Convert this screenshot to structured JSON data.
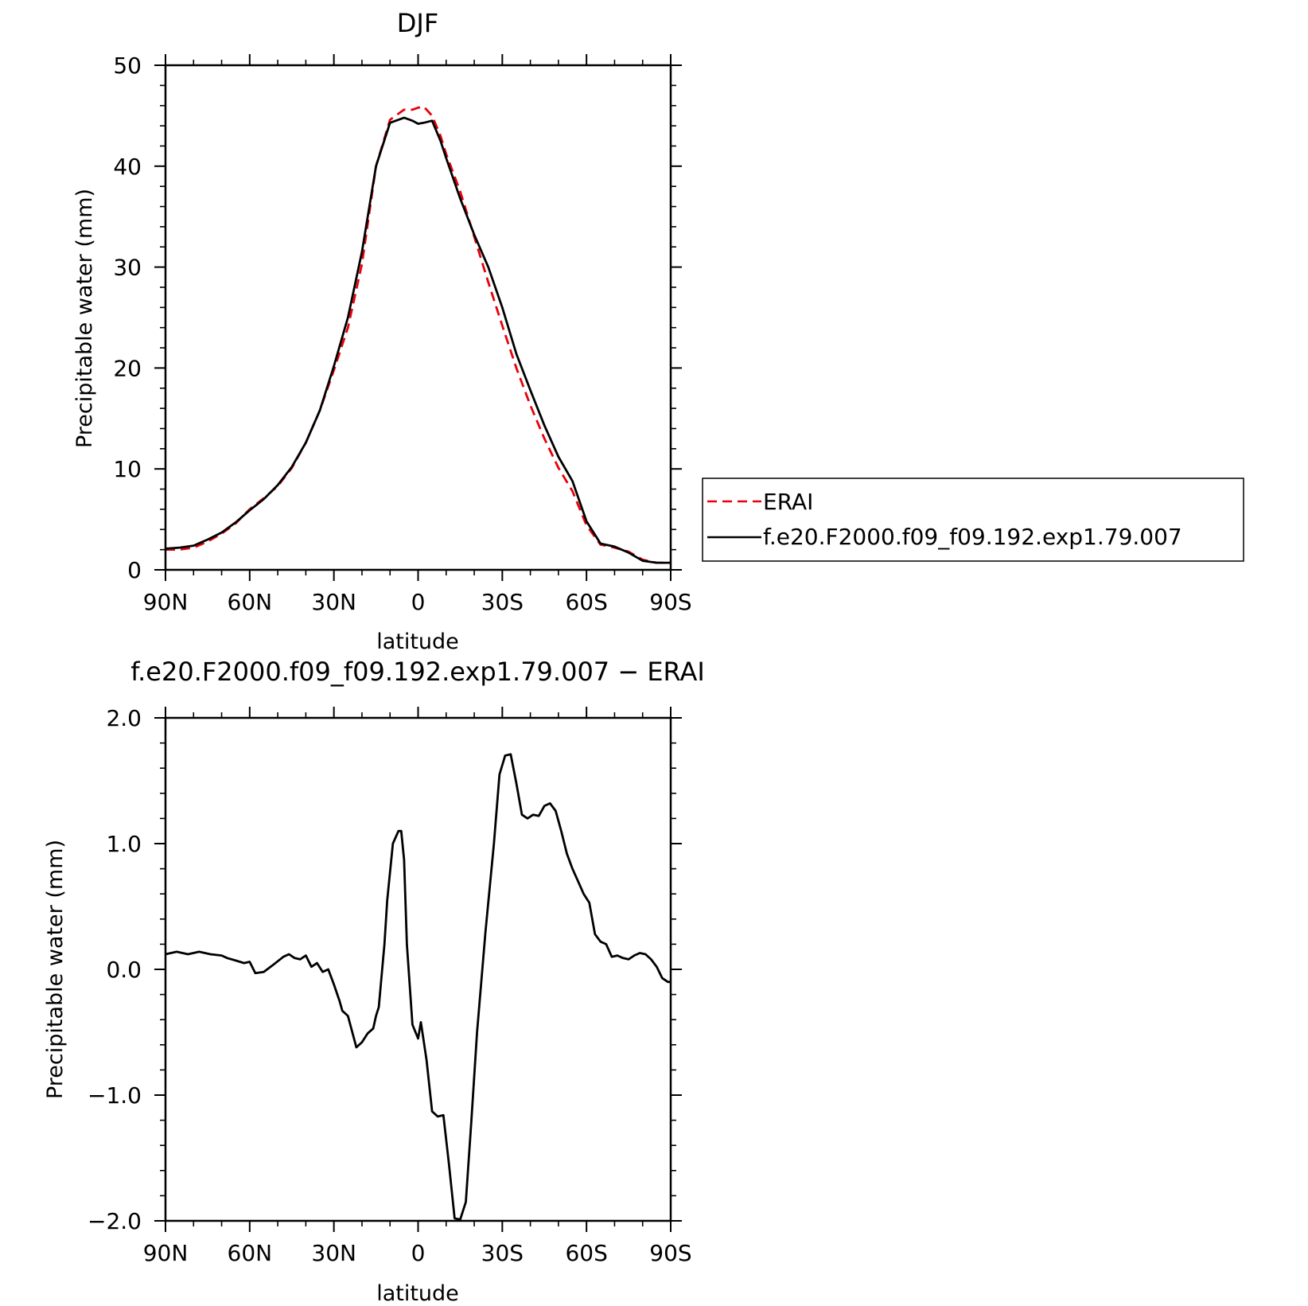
{
  "chart_data": [
    {
      "type": "line",
      "title": "DJF",
      "xlabel": "latitude",
      "ylabel": "Precipitable water (mm)",
      "xlim": [
        90,
        -90
      ],
      "ylim": [
        0,
        50
      ],
      "xtick_values": [
        90,
        60,
        30,
        0,
        -30,
        -60,
        -90
      ],
      "xtick_labels": [
        "90N",
        "60N",
        "30N",
        "0",
        "30S",
        "60S",
        "90S"
      ],
      "ytick_values": [
        0,
        10,
        20,
        30,
        40,
        50
      ],
      "ytick_labels": [
        "0",
        "10",
        "20",
        "30",
        "40",
        "50"
      ],
      "legend_position": "right",
      "series": [
        {
          "name": "ERAI",
          "color": "#e8000b",
          "dash": "dashed",
          "x": [
            90,
            85,
            80,
            75,
            70,
            65,
            60,
            55,
            50,
            45,
            40,
            35,
            30,
            25,
            20,
            15,
            10,
            5,
            2,
            0,
            -2,
            -5,
            -8,
            -10,
            -15,
            -20,
            -25,
            -30,
            -35,
            -40,
            -45,
            -50,
            -55,
            -60,
            -65,
            -70,
            -75,
            -80,
            -85,
            -88,
            -90
          ],
          "y": [
            2.0,
            2.0,
            2.2,
            2.8,
            3.6,
            4.6,
            6.0,
            7.1,
            8.3,
            10.1,
            12.6,
            15.8,
            19.8,
            24.0,
            30.3,
            40.0,
            44.6,
            45.6,
            45.6,
            45.8,
            45.9,
            45.0,
            43.0,
            41.2,
            37.5,
            33.0,
            28.5,
            24.2,
            20.0,
            16.3,
            13.0,
            10.1,
            7.8,
            4.4,
            2.5,
            2.2,
            1.8,
            1.0,
            0.7,
            0.7,
            0.7
          ],
          "annotation": null
        },
        {
          "name": "f.e20.F2000.f09_f09.192.exp1.79.007",
          "color": "#000000",
          "dash": "solid",
          "x": [
            90,
            85,
            80,
            75,
            70,
            65,
            60,
            55,
            50,
            45,
            40,
            35,
            30,
            25,
            20,
            15,
            10,
            5,
            2,
            0,
            -2,
            -5,
            -8,
            -10,
            -15,
            -20,
            -25,
            -30,
            -35,
            -40,
            -45,
            -50,
            -55,
            -60,
            -65,
            -70,
            -75,
            -80,
            -85,
            -88,
            -90
          ],
          "y": [
            2.1,
            2.2,
            2.4,
            3.0,
            3.7,
            4.7,
            5.9,
            7.0,
            8.4,
            10.2,
            12.6,
            15.8,
            20.2,
            25.0,
            31.5,
            40.0,
            44.3,
            44.8,
            44.5,
            44.2,
            44.3,
            44.5,
            42.5,
            40.8,
            36.8,
            33.2,
            30.0,
            26.0,
            21.4,
            17.8,
            14.3,
            11.2,
            8.8,
            4.8,
            2.6,
            2.3,
            1.7,
            0.9,
            0.7,
            0.7,
            0.7
          ]
        }
      ]
    },
    {
      "type": "line",
      "title": "f.e20.F2000.f09_f09.192.exp1.79.007 − ERAI",
      "xlabel": "latitude",
      "ylabel": "Precipitable water (mm)",
      "xlim": [
        90,
        -90
      ],
      "ylim": [
        -2.0,
        2.0
      ],
      "xtick_values": [
        90,
        60,
        30,
        0,
        -30,
        -60,
        -90
      ],
      "xtick_labels": [
        "90N",
        "60N",
        "30N",
        "0",
        "30S",
        "60S",
        "90S"
      ],
      "ytick_values": [
        2.0,
        1.0,
        0.0,
        -1.0,
        -2.0
      ],
      "ytick_labels": [
        "2.0",
        "1.0",
        "0.0",
        "−1.0",
        "−2.0"
      ],
      "series": [
        {
          "color": "#000000",
          "dash": "solid",
          "x": [
            90,
            86,
            82,
            78,
            74,
            70,
            68,
            65,
            62,
            60,
            58,
            55,
            52,
            48,
            46,
            44,
            42,
            40,
            38,
            36,
            34,
            32,
            30,
            28,
            27,
            25,
            22,
            20,
            18,
            16,
            15,
            14,
            12,
            11,
            9,
            7,
            6,
            5,
            4,
            2,
            0,
            -1,
            -3,
            -5,
            -7,
            -9,
            -11,
            -13,
            -15,
            -17,
            -19,
            -21,
            -24,
            -27,
            -29,
            -31,
            -33,
            -35,
            -37,
            -39,
            -41,
            -43,
            -45,
            -47,
            -49,
            -51,
            -53,
            -55,
            -57,
            -59,
            -61,
            -63,
            -65,
            -67,
            -69,
            -71,
            -73,
            -75,
            -77,
            -79,
            -81,
            -83,
            -85,
            -87,
            -89,
            -90
          ],
          "y": [
            0.12,
            0.14,
            0.12,
            0.14,
            0.12,
            0.11,
            0.09,
            0.07,
            0.05,
            0.06,
            -0.03,
            -0.02,
            0.03,
            0.1,
            0.12,
            0.09,
            0.08,
            0.11,
            0.02,
            0.05,
            -0.02,
            0.0,
            -0.12,
            -0.25,
            -0.33,
            -0.37,
            -0.62,
            -0.58,
            -0.51,
            -0.47,
            -0.37,
            -0.3,
            0.2,
            0.55,
            1.0,
            1.1,
            1.1,
            0.87,
            0.2,
            -0.44,
            -0.55,
            -0.42,
            -0.72,
            -1.13,
            -1.17,
            -1.16,
            -1.55,
            -1.98,
            -1.99,
            -1.85,
            -1.2,
            -0.5,
            0.3,
            1.0,
            1.55,
            1.7,
            1.71,
            1.48,
            1.23,
            1.2,
            1.23,
            1.22,
            1.3,
            1.32,
            1.26,
            1.1,
            0.92,
            0.8,
            0.7,
            0.6,
            0.53,
            0.28,
            0.22,
            0.2,
            0.1,
            0.11,
            0.09,
            0.08,
            0.11,
            0.13,
            0.12,
            0.08,
            0.02,
            -0.07,
            -0.1,
            -0.1
          ]
        }
      ]
    }
  ]
}
